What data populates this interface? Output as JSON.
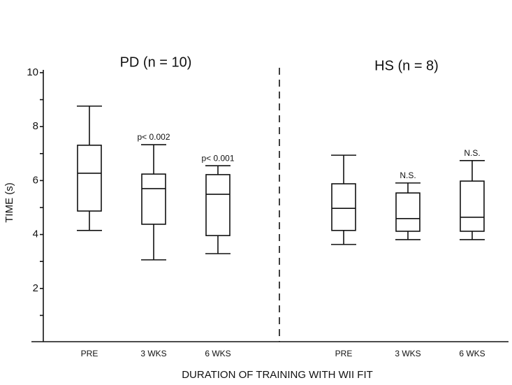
{
  "chart_data": {
    "type": "box",
    "y_label": "TIME (s)",
    "x_label": "DURATION OF TRAINING WITH WII FIT",
    "groups": [
      "PD (n = 10)",
      "HS (n = 8)"
    ],
    "categories": [
      "PRE",
      "3 WKS",
      "6 WKS",
      "PRE",
      "3 WKS",
      "6 WKS"
    ],
    "boxes": [
      {
        "min": 4.15,
        "q1": 4.87,
        "median": 6.27,
        "q3": 7.31,
        "max": 8.76
      },
      {
        "min": 3.06,
        "q1": 4.38,
        "median": 5.7,
        "q3": 6.24,
        "max": 7.33,
        "annotation": "p< 0.002"
      },
      {
        "min": 3.29,
        "q1": 3.96,
        "median": 5.49,
        "q3": 6.22,
        "max": 6.55,
        "annotation": "p< 0.001"
      },
      {
        "min": 3.63,
        "q1": 4.15,
        "median": 4.97,
        "q3": 5.88,
        "max": 6.94
      },
      {
        "min": 3.81,
        "q1": 4.12,
        "median": 4.59,
        "q3": 5.54,
        "max": 5.91,
        "annotation": "N.S."
      },
      {
        "min": 3.81,
        "q1": 4.12,
        "median": 4.64,
        "q3": 5.98,
        "max": 6.74,
        "annotation": "N.S."
      }
    ],
    "ylim": [
      0,
      10
    ],
    "yticks": [
      2,
      4,
      6,
      8,
      10
    ],
    "yminorticks": [
      1,
      3,
      5,
      7,
      9
    ],
    "color": "#111111"
  }
}
